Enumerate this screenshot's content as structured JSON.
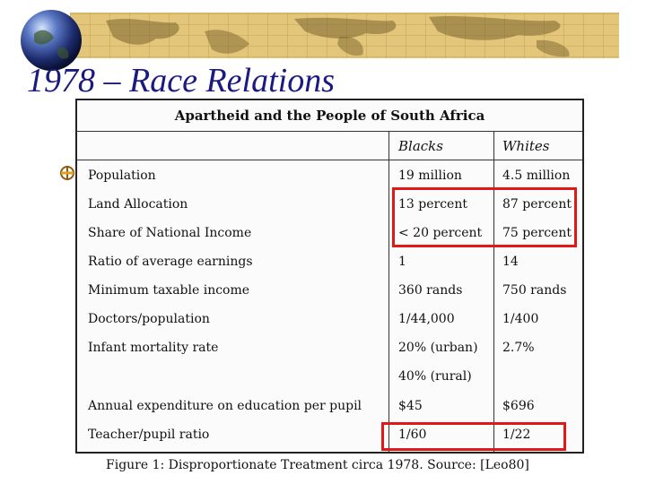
{
  "slide": {
    "title": "1978 – Race Relations",
    "accent_color": "#1a1a80",
    "banner_color": "#e3c679",
    "highlight_color": "#e01818"
  },
  "table": {
    "title": "Apartheid and the People of South Africa",
    "headers": {
      "blacks": "Blacks",
      "whites": "Whites"
    },
    "rows": [
      {
        "label": "Population",
        "blacks": "19 million",
        "whites": "4.5 million"
      },
      {
        "label": "Land Allocation",
        "blacks": "13 percent",
        "whites": "87 percent"
      },
      {
        "label": "Share of National Income",
        "blacks": "< 20 percent",
        "whites": "75 percent"
      },
      {
        "label": "Ratio of average earnings",
        "blacks": "1",
        "whites": "14"
      },
      {
        "label": "Minimum taxable income",
        "blacks": "360 rands",
        "whites": "750 rands"
      },
      {
        "label": "Doctors/population",
        "blacks": "1/44,000",
        "whites": "1/400"
      },
      {
        "label": "Infant mortality rate",
        "blacks": "20% (urban)",
        "whites": "2.7%"
      },
      {
        "label": "",
        "blacks": "40% (rural)",
        "whites": ""
      },
      {
        "label": "Annual expenditure on education per pupil",
        "blacks": "$45",
        "whites": "$696"
      },
      {
        "label": "Teacher/pupil ratio",
        "blacks": "1/60",
        "whites": "1/22"
      }
    ],
    "caption": "Figure 1: Disproportionate Treatment circa 1978. Source: [Leo80]"
  }
}
